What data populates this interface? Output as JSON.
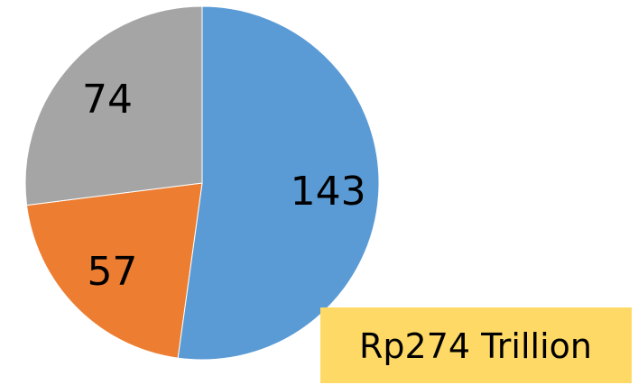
{
  "chart_data": {
    "type": "pie",
    "values": [
      143,
      57,
      74
    ],
    "colors": [
      "#5b9bd5",
      "#ed7d31",
      "#a5a5a5"
    ],
    "annotation": "Rp274 Trillion",
    "annotation_color": "#ffd966"
  }
}
